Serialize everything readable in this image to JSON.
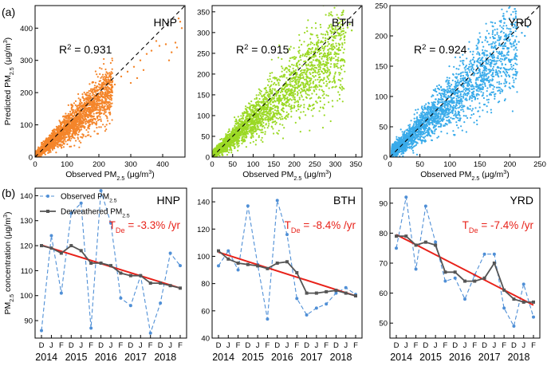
{
  "panel_labels": {
    "a": "(a)",
    "b": "(b)"
  },
  "colors": {
    "HNP": "#f4852a",
    "BTH": "#9bd925",
    "YRD": "#39abea",
    "observed_line": "#4f8fd6",
    "deweathered": "#555555",
    "trend": "#e8221a"
  },
  "chart_data": [
    {
      "type": "scatter",
      "region": "HNP",
      "r2_label": "R",
      "r2_sup": "2",
      "r2_value": " = 0.931",
      "xlabel_main": "Observed PM",
      "xlabel_sub": "2.5",
      "xlabel_unit": " (μg/m",
      "xlabel_unit_sup": "3",
      "xlabel_close": ")",
      "ylabel_main": "Predicted PM",
      "ylabel_sub": "2.5",
      "ylabel_unit": " (μg/m",
      "ylabel_unit_sup": "3",
      "ylabel_close": ")",
      "xlim": [
        0,
        470
      ],
      "ylim": [
        0,
        470
      ],
      "xticks": [
        0,
        100,
        200,
        300,
        400
      ],
      "yticks": [
        0,
        100,
        200,
        300,
        400
      ],
      "cloud": {
        "n": 2600,
        "xmax": 240,
        "core_slope": 0.85,
        "spread": 0.17
      },
      "outliers": [
        [
          270,
          250
        ],
        [
          290,
          265
        ],
        [
          310,
          280
        ],
        [
          330,
          300
        ],
        [
          350,
          320
        ],
        [
          365,
          330
        ],
        [
          390,
          345
        ],
        [
          410,
          350
        ],
        [
          420,
          300
        ],
        [
          428,
          325
        ],
        [
          440,
          355
        ],
        [
          445,
          340
        ],
        [
          450,
          430
        ],
        [
          455,
          420
        ],
        [
          460,
          400
        ],
        [
          300,
          230
        ],
        [
          320,
          245
        ],
        [
          340,
          270
        ],
        [
          380,
          360
        ],
        [
          250,
          225
        ]
      ]
    },
    {
      "type": "scatter",
      "region": "BTH",
      "r2_label": "R",
      "r2_sup": "2",
      "r2_value": " = 0.915",
      "xlabel_main": "Observed PM",
      "xlabel_sub": "2.5",
      "xlabel_unit": " (μg/m",
      "xlabel_unit_sup": "3",
      "xlabel_close": ")",
      "xlim": [
        0,
        365
      ],
      "ylim": [
        0,
        365
      ],
      "xticks": [
        0,
        50,
        100,
        150,
        200,
        250,
        300,
        350
      ],
      "yticks": [
        0,
        50,
        100,
        150,
        200,
        250,
        300,
        350
      ],
      "cloud": {
        "n": 2800,
        "xmax": 320,
        "core_slope": 0.85,
        "spread": 0.18
      },
      "outliers": [
        [
          330,
          312
        ],
        [
          335,
          320
        ],
        [
          340,
          305
        ],
        [
          325,
          300
        ]
      ]
    },
    {
      "type": "scatter",
      "region": "YRD",
      "r2_label": "R",
      "r2_sup": "2",
      "r2_value": " = 0.924",
      "xlabel_main": "Observed PM",
      "xlabel_sub": "2.5",
      "xlabel_unit": " (μg/m",
      "xlabel_unit_sup": "3",
      "xlabel_close": ")",
      "xlim": [
        0,
        250
      ],
      "ylim": [
        0,
        250
      ],
      "xticks": [
        0,
        50,
        100,
        150,
        200,
        250
      ],
      "yticks": [
        0,
        50,
        100,
        150,
        200,
        250
      ],
      "cloud": {
        "n": 2600,
        "xmax": 210,
        "core_slope": 0.88,
        "spread": 0.17
      },
      "outliers": [
        [
          215,
          190
        ],
        [
          220,
          205
        ],
        [
          225,
          200
        ],
        [
          230,
          215
        ]
      ]
    },
    {
      "type": "line",
      "region": "HNP",
      "trend_label": "T",
      "trend_sub": "De",
      "trend_value": " = -3.3% /yr",
      "ylabel_main": "PM",
      "ylabel_sub": "2.5",
      "ylabel_rest": " concentration (μg/m",
      "ylabel_sup": "3",
      "ylabel_close": ")",
      "legend": [
        {
          "main": "Observed PM",
          "sub": "2.5"
        },
        {
          "main": "Deweathered PM",
          "sub": "2.5"
        }
      ],
      "x_months": [
        "D",
        "J",
        "F",
        "D",
        "J",
        "F",
        "D",
        "J",
        "F",
        "D",
        "J",
        "F",
        "D",
        "J",
        "F"
      ],
      "x_years": [
        "2014",
        "2015",
        "2016",
        "2017",
        "2018"
      ],
      "ylim": [
        83,
        143
      ],
      "yticks": [
        90,
        100,
        110,
        120,
        130,
        140
      ],
      "observed": [
        86,
        124,
        101,
        133,
        137,
        87,
        142,
        129,
        99,
        96,
        108,
        85,
        97,
        117,
        112
      ],
      "deweathered": [
        120,
        119,
        117,
        120,
        118,
        113,
        113,
        112,
        109,
        108,
        108,
        105,
        105,
        104,
        103
      ],
      "trend": [
        120.2,
        103.0
      ]
    },
    {
      "type": "line",
      "region": "BTH",
      "trend_label": "T",
      "trend_sub": "De",
      "trend_value": " = -8.4% /yr",
      "x_months": [
        "D",
        "J",
        "F",
        "D",
        "J",
        "F",
        "D",
        "J",
        "F",
        "D",
        "J",
        "F",
        "D",
        "J",
        "F"
      ],
      "x_years": [
        "2014",
        "2015",
        "2016",
        "2017",
        "2018"
      ],
      "ylim": [
        40,
        150
      ],
      "yticks": [
        40,
        60,
        80,
        100,
        120,
        140
      ],
      "observed": [
        93,
        104,
        90,
        137,
        94,
        54,
        141,
        116,
        69,
        57,
        62,
        65,
        73,
        77,
        72
      ],
      "deweathered": [
        104,
        98,
        95,
        94,
        93,
        91,
        95,
        96,
        88,
        73,
        73,
        74,
        75,
        73,
        71
      ],
      "trend": [
        103.0,
        71.0
      ]
    },
    {
      "type": "line",
      "region": "YRD",
      "trend_label": "T",
      "trend_sub": "De",
      "trend_value": " = -7.4% /yr",
      "x_months": [
        "D",
        "J",
        "F",
        "D",
        "J",
        "F",
        "D",
        "J",
        "F",
        "D",
        "J",
        "F",
        "D",
        "J",
        "F"
      ],
      "x_years": [
        "2014",
        "2015",
        "2016",
        "2017",
        "2018"
      ],
      "ylim": [
        45,
        95
      ],
      "yticks": [
        50,
        60,
        70,
        80,
        90
      ],
      "observed": [
        75,
        92,
        68,
        89,
        77,
        64,
        65,
        58,
        66,
        73,
        73,
        55,
        49,
        63,
        52
      ],
      "deweathered": [
        79,
        79,
        76,
        77,
        76,
        67,
        67,
        64,
        64,
        65,
        70,
        61,
        58,
        57,
        57
      ],
      "trend": [
        79.5,
        56.0
      ]
    }
  ]
}
